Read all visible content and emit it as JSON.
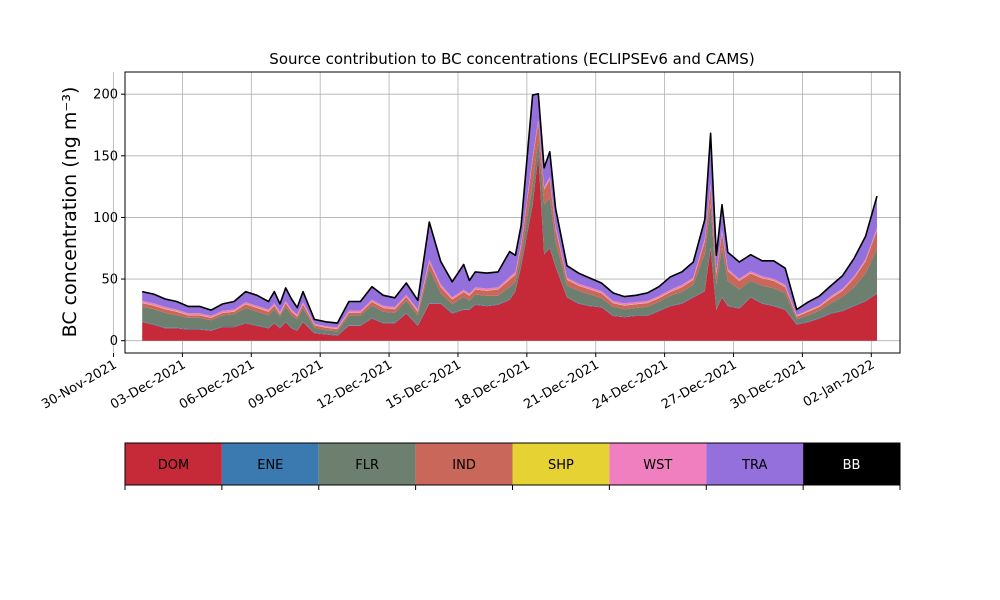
{
  "chart_data": {
    "type": "area",
    "title": "Source contribution to BC concentrations (ECLIPSEv6 and CAMS)",
    "xlabel": "",
    "ylabel": "BC concentration (ng m⁻³)",
    "ylim": [
      -10,
      218
    ],
    "xlim": [
      "2021-11-30T12:00",
      "2022-01-03T06:00"
    ],
    "yticks": [
      0,
      50,
      100,
      150,
      200
    ],
    "xticks": [
      "30-Nov-2021",
      "03-Dec-2021",
      "06-Dec-2021",
      "09-Dec-2021",
      "12-Dec-2021",
      "15-Dec-2021",
      "18-Dec-2021",
      "21-Dec-2021",
      "24-Dec-2021",
      "27-Dec-2021",
      "30-Dec-2021",
      "02-Jan-2022"
    ],
    "grid": true,
    "stacked": true,
    "x": [
      "2021-12-01T06:00",
      "2021-12-01T18:00",
      "2021-12-02T06:00",
      "2021-12-02T18:00",
      "2021-12-03T06:00",
      "2021-12-03T18:00",
      "2021-12-04T06:00",
      "2021-12-04T18:00",
      "2021-12-05T06:00",
      "2021-12-05T18:00",
      "2021-12-06T06:00",
      "2021-12-06T18:00",
      "2021-12-07T00:00",
      "2021-12-07T06:00",
      "2021-12-07T12:00",
      "2021-12-07T18:00",
      "2021-12-08T00:00",
      "2021-12-08T06:00",
      "2021-12-08T18:00",
      "2021-12-09T06:00",
      "2021-12-09T18:00",
      "2021-12-10T06:00",
      "2021-12-10T18:00",
      "2021-12-11T06:00",
      "2021-12-11T18:00",
      "2021-12-12T06:00",
      "2021-12-12T18:00",
      "2021-12-13T06:00",
      "2021-12-13T18:00",
      "2021-12-14T06:00",
      "2021-12-14T18:00",
      "2021-12-15T06:00",
      "2021-12-15T12:00",
      "2021-12-15T18:00",
      "2021-12-16T06:00",
      "2021-12-16T18:00",
      "2021-12-17T06:00",
      "2021-12-17T12:00",
      "2021-12-17T18:00",
      "2021-12-18T06:00",
      "2021-12-18T12:00",
      "2021-12-18T18:00",
      "2021-12-19T00:00",
      "2021-12-19T06:00",
      "2021-12-19T18:00",
      "2021-12-20T06:00",
      "2021-12-20T18:00",
      "2021-12-21T06:00",
      "2021-12-21T18:00",
      "2021-12-22T06:00",
      "2021-12-22T18:00",
      "2021-12-23T06:00",
      "2021-12-23T18:00",
      "2021-12-24T06:00",
      "2021-12-24T18:00",
      "2021-12-25T06:00",
      "2021-12-25T18:00",
      "2021-12-26T00:00",
      "2021-12-26T06:00",
      "2021-12-26T12:00",
      "2021-12-26T18:00",
      "2021-12-27T06:00",
      "2021-12-27T18:00",
      "2021-12-28T06:00",
      "2021-12-28T18:00",
      "2021-12-29T06:00",
      "2021-12-29T18:00",
      "2021-12-30T06:00",
      "2021-12-30T18:00",
      "2021-12-31T06:00",
      "2021-12-31T18:00",
      "2022-01-01T06:00",
      "2022-01-01T18:00",
      "2022-01-02T06:00"
    ],
    "series": [
      {
        "name": "DOM",
        "color": "#c62938",
        "values": [
          15,
          13,
          10,
          10,
          9,
          9,
          8,
          11,
          11,
          14,
          12,
          10,
          14,
          10,
          15,
          10,
          8,
          15,
          6,
          5,
          4,
          12,
          12,
          18,
          14,
          14,
          22,
          12,
          30,
          30,
          22,
          25,
          25,
          29,
          28,
          29,
          33,
          40,
          60,
          110,
          150,
          70,
          75,
          60,
          35,
          30,
          28,
          27,
          20,
          19,
          20,
          20,
          24,
          28,
          30,
          35,
          40,
          75,
          25,
          35,
          28,
          26,
          35,
          30,
          28,
          25,
          13,
          15,
          18,
          22,
          24,
          28,
          32,
          38
        ]
      },
      {
        "name": "ENE",
        "color": "#3a7ab1",
        "values": [
          0.5,
          0.5,
          0.5,
          0.5,
          0.5,
          0.5,
          0.5,
          0.5,
          0.5,
          0.5,
          0.5,
          0.5,
          0.5,
          0.5,
          0.5,
          0.5,
          0.5,
          0.5,
          0.5,
          0.5,
          0.5,
          0.5,
          0.5,
          0.5,
          0.5,
          0.5,
          0.5,
          0.5,
          0.5,
          0.5,
          0.5,
          0.5,
          0.5,
          0.5,
          0.5,
          0.5,
          0.5,
          0.5,
          0.5,
          0.5,
          0.5,
          0.5,
          0.5,
          0.5,
          0.5,
          0.5,
          0.5,
          0.5,
          0.5,
          0.5,
          0.5,
          0.5,
          0.5,
          0.5,
          0.5,
          0.5,
          0.5,
          0.5,
          0.5,
          0.5,
          0.5,
          0.5,
          0.5,
          0.5,
          0.5,
          0.5,
          0.5,
          0.5,
          0.5,
          0.5,
          0.5,
          0.5,
          0.5,
          0.5
        ]
      },
      {
        "name": "FLR",
        "color": "#6d7f6e",
        "values": [
          12,
          12,
          12,
          10,
          9,
          9,
          8,
          9,
          10,
          12,
          11,
          10,
          11,
          9,
          12,
          10,
          9,
          11,
          4,
          3,
          3,
          8,
          8,
          10,
          9,
          8,
          10,
          8,
          28,
          8,
          7,
          10,
          7,
          8,
          8,
          7,
          10,
          7,
          8,
          16,
          12,
          40,
          40,
          20,
          9,
          10,
          9,
          7,
          7,
          6,
          6,
          7,
          7,
          8,
          9,
          10,
          30,
          35,
          20,
          40,
          20,
          15,
          13,
          14,
          14,
          13,
          4,
          5,
          6,
          8,
          11,
          15,
          22,
          36
        ]
      },
      {
        "name": "IND",
        "color": "#c8675a",
        "values": [
          3,
          3,
          3,
          3,
          2,
          2,
          2,
          2,
          2,
          3,
          3,
          3,
          3,
          2,
          3,
          3,
          2,
          3,
          2,
          2,
          2,
          2,
          2,
          3,
          3,
          3,
          3,
          3,
          5,
          5,
          4,
          4,
          4,
          4,
          4,
          5,
          6,
          6,
          8,
          20,
          15,
          12,
          15,
          10,
          5,
          4,
          4,
          4,
          3,
          3,
          3,
          3,
          3,
          3,
          4,
          4,
          10,
          15,
          8,
          12,
          8,
          7,
          6,
          6,
          6,
          5,
          2,
          3,
          3,
          4,
          5,
          7,
          10,
          15
        ]
      },
      {
        "name": "SHP",
        "color": "#e6d232",
        "values": [
          0.3,
          0.3,
          0.3,
          0.3,
          0.3,
          0.3,
          0.3,
          0.3,
          0.3,
          0.3,
          0.3,
          0.3,
          0.3,
          0.3,
          0.3,
          0.3,
          0.3,
          0.3,
          0.3,
          0.3,
          0.3,
          0.3,
          0.3,
          0.3,
          0.3,
          0.3,
          0.3,
          0.3,
          0.3,
          0.3,
          0.3,
          0.3,
          0.3,
          0.3,
          0.3,
          0.3,
          0.3,
          0.3,
          0.3,
          0.3,
          0.3,
          0.3,
          0.3,
          0.3,
          0.3,
          0.3,
          0.3,
          0.3,
          0.3,
          0.3,
          0.3,
          0.3,
          0.3,
          0.3,
          0.3,
          0.3,
          0.3,
          0.3,
          0.3,
          0.3,
          0.3,
          0.3,
          0.3,
          0.3,
          0.3,
          0.3,
          0.3,
          0.3,
          0.3,
          0.3,
          0.3,
          0.3,
          0.3,
          0.3
        ]
      },
      {
        "name": "WST",
        "color": "#ef7fbe",
        "values": [
          1.5,
          1.5,
          1.5,
          1.5,
          1.5,
          1.5,
          1.5,
          1.5,
          1.5,
          1.5,
          1.5,
          1.5,
          1.5,
          1.5,
          1.5,
          1.5,
          1.5,
          1.5,
          1,
          1,
          1,
          1.5,
          1.5,
          1.5,
          1.5,
          1.5,
          1.5,
          1.5,
          2,
          2,
          1.5,
          1.5,
          1.5,
          1.5,
          1.5,
          1.5,
          2,
          2,
          2,
          2,
          2,
          2,
          2,
          2,
          1.5,
          1.5,
          1.5,
          1.5,
          1.5,
          1.5,
          1.5,
          1.5,
          1.5,
          1.5,
          1.5,
          1.5,
          2,
          2,
          2,
          2,
          1.5,
          1.5,
          1.5,
          1.5,
          1.5,
          1.5,
          1,
          1,
          1,
          1.5,
          1.5,
          1.5,
          1.5,
          2
        ]
      },
      {
        "name": "TRA",
        "color": "#9370db",
        "values": [
          7,
          7,
          6,
          6,
          5,
          5,
          4,
          5,
          6,
          8,
          8,
          6,
          9,
          6,
          10,
          8,
          5,
          8,
          3,
          3,
          3,
          7,
          7,
          10,
          8,
          7,
          9,
          7,
          30,
          18,
          12,
          20,
          10,
          12,
          12,
          12,
          20,
          13,
          14,
          50,
          20,
          15,
          20,
          14,
          9,
          8,
          7,
          6,
          6,
          5,
          5,
          6,
          7,
          10,
          10,
          12,
          15,
          40,
          13,
          20,
          13,
          13,
          13,
          12,
          14,
          13,
          4,
          6,
          7,
          8,
          10,
          14,
          18,
          25
        ]
      },
      {
        "name": "BB",
        "color": "#000000",
        "values": [
          0.5,
          0.5,
          0.5,
          0.5,
          0.5,
          0.5,
          0.5,
          0.5,
          0.5,
          0.5,
          0.5,
          0.5,
          0.5,
          0.5,
          0.5,
          0.5,
          0.5,
          0.5,
          0.5,
          0.5,
          0.5,
          0.5,
          0.5,
          0.5,
          0.5,
          0.5,
          0.5,
          0.5,
          0.5,
          0.5,
          0.5,
          0.5,
          0.5,
          0.5,
          0.5,
          0.5,
          0.5,
          0.5,
          0.5,
          0.5,
          0.5,
          0.5,
          0.5,
          0.5,
          0.5,
          0.5,
          0.5,
          0.5,
          0.5,
          0.5,
          0.5,
          0.5,
          0.5,
          0.5,
          0.5,
          0.5,
          0.5,
          0.5,
          0.5,
          0.5,
          0.5,
          0.5,
          0.5,
          0.5,
          0.5,
          0.5,
          0.5,
          0.5,
          0.5,
          0.5,
          0.5,
          0.5,
          0.5,
          0.5
        ]
      }
    ],
    "legend": {
      "placement": "bottom",
      "style": "colorbar",
      "labels": [
        "DOM",
        "ENE",
        "FLR",
        "IND",
        "SHP",
        "WST",
        "TRA",
        "BB"
      ]
    }
  }
}
